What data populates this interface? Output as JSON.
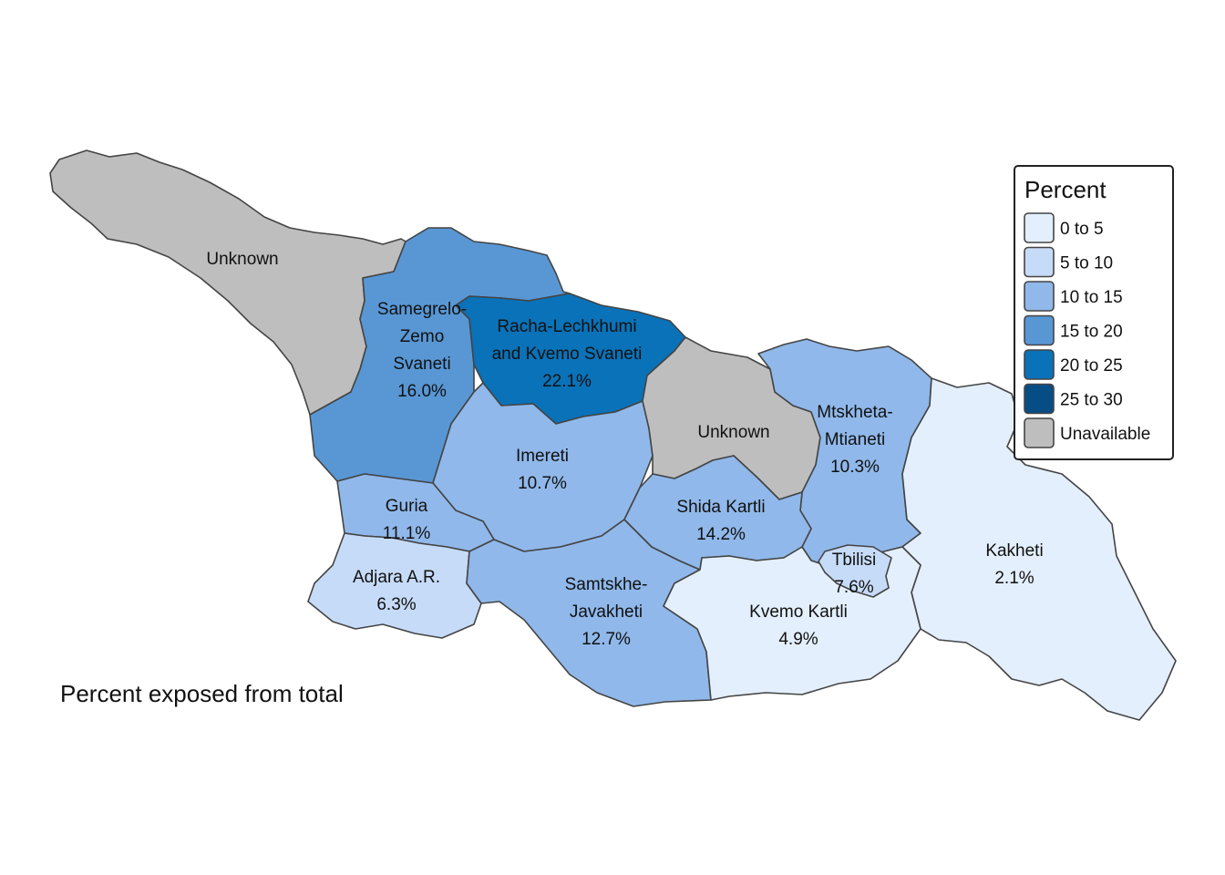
{
  "legend": {
    "title": "Percent",
    "items": [
      {
        "label": "0 to 5",
        "color": "#e3effc"
      },
      {
        "label": "5 to 10",
        "color": "#c6dbf7"
      },
      {
        "label": "10 to 15",
        "color": "#90b8ea"
      },
      {
        "label": "15 to 20",
        "color": "#5897d4"
      },
      {
        "label": "20 to 25",
        "color": "#0a72b8"
      },
      {
        "label": "25 to 30",
        "color": "#064d86"
      },
      {
        "label": "Unavailable",
        "color": "#bebebe"
      }
    ]
  },
  "caption": "Percent exposed from total",
  "regions": [
    {
      "id": "abkhazia",
      "lines": [
        "Unknown"
      ],
      "percent": null,
      "color": "#bebebe"
    },
    {
      "id": "samegrelo",
      "lines": [
        "Samegrelo-",
        "Zemo",
        "Svaneti",
        "16.0%"
      ],
      "percent": 16.0,
      "color": "#5897d4"
    },
    {
      "id": "racha",
      "lines": [
        "Racha-Lechkhumi",
        "and Kvemo Svaneti",
        "22.1%"
      ],
      "percent": 22.1,
      "color": "#0a72b8"
    },
    {
      "id": "imereti",
      "lines": [
        "Imereti",
        "10.7%"
      ],
      "percent": 10.7,
      "color": "#90b8ea"
    },
    {
      "id": "south-ossetia",
      "lines": [
        "Unknown"
      ],
      "percent": null,
      "color": "#bebebe"
    },
    {
      "id": "mtskheta",
      "lines": [
        "Mtskheta-",
        "Mtianeti",
        "10.3%"
      ],
      "percent": 10.3,
      "color": "#90b8ea"
    },
    {
      "id": "kakheti",
      "lines": [
        "Kakheti",
        "2.1%"
      ],
      "percent": 2.1,
      "color": "#e3effc"
    },
    {
      "id": "guria",
      "lines": [
        "Guria",
        "11.1%"
      ],
      "percent": 11.1,
      "color": "#90b8ea"
    },
    {
      "id": "adjara",
      "lines": [
        "Adjara A.R.",
        "6.3%"
      ],
      "percent": 6.3,
      "color": "#c6dbf7"
    },
    {
      "id": "samtskhe",
      "lines": [
        "Samtskhe-",
        "Javakheti",
        "12.7%"
      ],
      "percent": 12.7,
      "color": "#90b8ea"
    },
    {
      "id": "shida-kartli",
      "lines": [
        "Shida Kartli",
        "14.2%"
      ],
      "percent": 14.2,
      "color": "#90b8ea"
    },
    {
      "id": "kvemo-kartli",
      "lines": [
        "Kvemo Kartli",
        "4.9%"
      ],
      "percent": 4.9,
      "color": "#e3effc"
    },
    {
      "id": "tbilisi",
      "lines": [
        "Tbilisi",
        "7.6%"
      ],
      "percent": 7.6,
      "color": "#c6dbf7"
    }
  ]
}
